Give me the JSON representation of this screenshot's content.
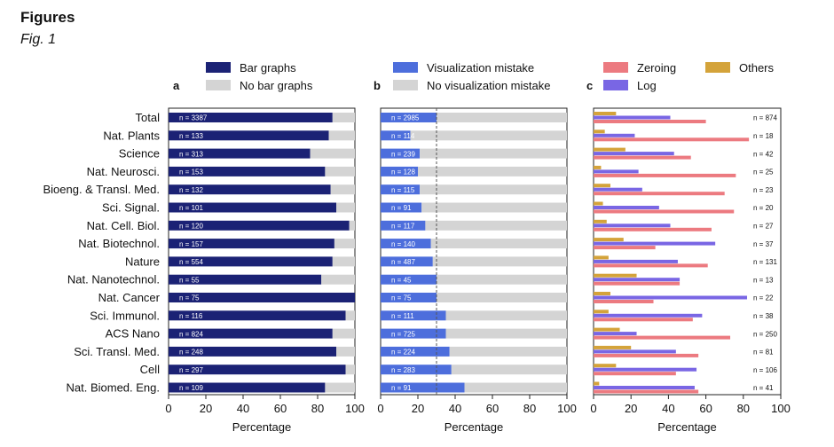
{
  "page": {
    "heading": "Figures",
    "subheading": "Fig. 1"
  },
  "colors": {
    "bar_graphs": "#1b2275",
    "no_bar": "#d4d4d4",
    "vis_mistake": "#4d6edc",
    "zeroing": "#ec7a80",
    "log": "#7966e4",
    "others": "#d4a33a",
    "threshold": "#555555"
  },
  "categories": [
    "Total",
    "Nat. Plants",
    "Science",
    "Nat. Neurosci.",
    "Bioeng. & Transl. Med.",
    "Sci. Signal.",
    "Nat. Cell. Biol.",
    "Nat. Biotechnol.",
    "Nature",
    "Nat. Nanotechnol.",
    "Nat. Cancer",
    "Sci. Immunol.",
    "ACS Nano",
    "Sci. Transl. Med.",
    "Cell",
    "Nat. Biomed. Eng."
  ],
  "chart_data": [
    {
      "type": "bar",
      "panel": "a",
      "orientation": "horizontal",
      "stacked": true,
      "xlabel": "Percentage",
      "xlim": [
        0,
        100
      ],
      "xticks": [
        "0",
        "20",
        "40",
        "60",
        "80",
        "100"
      ],
      "legend_placement": "top",
      "series": [
        {
          "name": "Bar graphs",
          "color_key": "bar_graphs",
          "values": [
            88,
            86,
            76,
            84,
            87,
            90,
            97,
            89,
            88,
            82,
            100,
            95,
            88,
            90,
            95,
            84
          ]
        },
        {
          "name": "No bar graphs",
          "color_key": "no_bar",
          "values": [
            12,
            14,
            24,
            16,
            13,
            10,
            3,
            11,
            12,
            18,
            0,
            5,
            12,
            10,
            5,
            16
          ]
        }
      ],
      "n_labels": [
        "n = 3387",
        "n = 133",
        "n = 313",
        "n = 153",
        "n = 132",
        "n = 101",
        "n = 120",
        "n = 157",
        "n = 554",
        "n = 55",
        "n = 75",
        "n = 116",
        "n = 824",
        "n = 248",
        "n = 297",
        "n = 109"
      ]
    },
    {
      "type": "bar",
      "panel": "b",
      "orientation": "horizontal",
      "stacked": true,
      "xlabel": "Percentage",
      "xlim": [
        0,
        100
      ],
      "xticks": [
        "0",
        "20",
        "40",
        "60",
        "80",
        "100"
      ],
      "legend_placement": "top",
      "reference_line_x": 30,
      "series": [
        {
          "name": "Visualization mistake",
          "color_key": "vis_mistake",
          "values": [
            30,
            16,
            21,
            20,
            21,
            22,
            24,
            27,
            28,
            30,
            30,
            35,
            35,
            37,
            38,
            45
          ]
        },
        {
          "name": "No visualization mistake",
          "color_key": "no_bar",
          "values": [
            70,
            84,
            79,
            80,
            79,
            78,
            76,
            73,
            72,
            70,
            70,
            65,
            65,
            63,
            62,
            55
          ]
        }
      ],
      "n_labels": [
        "n = 2985",
        "n = 114",
        "n = 239",
        "n = 128",
        "n = 115",
        "n = 91",
        "n = 117",
        "n = 140",
        "n = 487",
        "n = 45",
        "n = 75",
        "n = 111",
        "n = 725",
        "n = 224",
        "n = 283",
        "n = 91"
      ]
    },
    {
      "type": "bar",
      "panel": "c",
      "orientation": "horizontal",
      "stacked": false,
      "xlabel": "Percentage",
      "xlim": [
        0,
        100
      ],
      "xticks": [
        "0",
        "20",
        "40",
        "60",
        "80",
        "100"
      ],
      "legend_placement": "top",
      "series": [
        {
          "name": "Others",
          "color_key": "others",
          "values": [
            12,
            6,
            17,
            4,
            9,
            5,
            7,
            16,
            8,
            23,
            9,
            8,
            14,
            20,
            12,
            3
          ]
        },
        {
          "name": "Log",
          "color_key": "log",
          "values": [
            41,
            22,
            43,
            24,
            26,
            35,
            41,
            65,
            45,
            46,
            82,
            58,
            23,
            44,
            55,
            54
          ]
        },
        {
          "name": "Zeroing",
          "color_key": "zeroing",
          "values": [
            60,
            83,
            52,
            76,
            70,
            75,
            63,
            33,
            61,
            46,
            32,
            53,
            73,
            56,
            44,
            56
          ]
        }
      ],
      "n_labels": [
        "n = 874",
        "n = 18",
        "n = 42",
        "n = 25",
        "n = 23",
        "n = 20",
        "n = 27",
        "n = 37",
        "n = 131",
        "n = 13",
        "n = 22",
        "n = 38",
        "n = 250",
        "n = 81",
        "n = 106",
        "n = 41"
      ]
    }
  ],
  "legends": {
    "a": [
      "Bar graphs",
      "No bar graphs"
    ],
    "b": [
      "Visualization mistake",
      "No visualization mistake"
    ],
    "c": [
      "Zeroing",
      "Log",
      "Others"
    ]
  }
}
